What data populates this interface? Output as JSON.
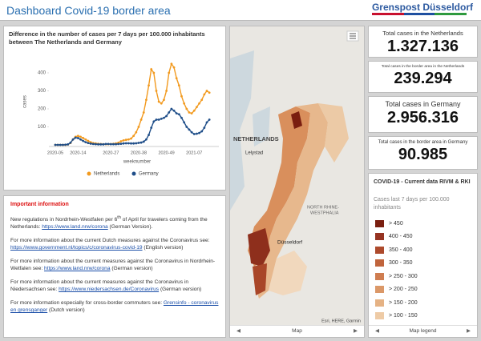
{
  "header": {
    "title": "Dashboard Covid-19 border area",
    "logo": "Grenspost Düsseldorf"
  },
  "chart_data": {
    "type": "line",
    "title": "Difference in the number of cases per 7 days per 100.000 inhabitants between The Netherlands and Germany",
    "x_label": "weeknumber",
    "y_label": "cases",
    "categories": [
      "2020-05",
      null,
      null,
      null,
      null,
      null,
      null,
      null,
      null,
      "2020-14",
      null,
      null,
      null,
      null,
      null,
      null,
      null,
      null,
      null,
      null,
      null,
      null,
      "2020-27",
      null,
      null,
      null,
      null,
      null,
      null,
      null,
      null,
      null,
      null,
      "2020-38",
      null,
      null,
      null,
      null,
      null,
      null,
      null,
      null,
      null,
      null,
      "2020-49",
      null,
      null,
      null,
      null,
      null,
      null,
      null,
      null,
      null,
      null,
      "2021-07",
      null,
      null,
      null,
      null,
      null,
      null
    ],
    "series": [
      {
        "name": "Netherlands",
        "color": "#f29a1f",
        "values": [
          0,
          0,
          0,
          0,
          0,
          2,
          10,
          30,
          45,
          50,
          45,
          38,
          30,
          22,
          15,
          10,
          8,
          6,
          5,
          4,
          4,
          4,
          5,
          6,
          8,
          12,
          20,
          25,
          28,
          30,
          35,
          50,
          70,
          100,
          140,
          180,
          250,
          330,
          420,
          400,
          300,
          240,
          230,
          250,
          300,
          400,
          450,
          430,
          370,
          330,
          270,
          230,
          200,
          180,
          175,
          190,
          210,
          230,
          250,
          280,
          300,
          290
        ]
      },
      {
        "name": "Germany",
        "color": "#1f4e89",
        "values": [
          0,
          0,
          0,
          0,
          1,
          3,
          12,
          30,
          40,
          38,
          30,
          22,
          15,
          10,
          7,
          5,
          4,
          3,
          3,
          3,
          5,
          5,
          4,
          4,
          4,
          5,
          6,
          8,
          9,
          9,
          8,
          8,
          9,
          11,
          13,
          18,
          30,
          55,
          95,
          130,
          140,
          140,
          145,
          150,
          160,
          180,
          200,
          190,
          175,
          170,
          150,
          125,
          100,
          85,
          70,
          60,
          62,
          66,
          75,
          95,
          125,
          140
        ]
      }
    ],
    "ylim": [
      0,
      480
    ],
    "yticks": [
      100,
      200,
      300,
      400
    ],
    "grid": false,
    "legend": "bottom"
  },
  "info": {
    "heading": "Important information",
    "paragraphs": [
      {
        "text": "New regulations in Nordrhein-Westfalen per 6",
        "sup": "th",
        "text2": " of April for travelers coming from the Netherlands: ",
        "link": "https://www.land.nrw/corona",
        "after": " (German Version)."
      },
      {
        "text": "For more information about the current Dutch measures against the Coronavirus see: ",
        "link": "https://www.government.nl/topics/c/coronavirus-covid-19",
        "after": " (English version)"
      },
      {
        "text": "For more information about the current measures against the Coronavirus in Nordrhein-Wetfalen see: ",
        "link": "https://www.land.nrw/corona",
        "after": " (German version)"
      },
      {
        "text": "For more information about the current measures against the Coronavirus in Niedersachsen see: ",
        "link": "https://www.niedersachsen.de/Coronavirus",
        "after": " (German version)"
      },
      {
        "text": "For more information especially for cross-border commuters see: ",
        "link": "Grensinfo - coronavirus en grensganger",
        "after": " (Dutch version)"
      }
    ]
  },
  "map": {
    "labels": [
      "NETHERLANDS",
      "Lelystad",
      "NORTH RHINE-",
      "WESTPHALIA",
      "Düsseldorf"
    ],
    "attribution": "Esri, HERE, Garmin",
    "footer": "Map"
  },
  "cards": [
    {
      "title": "Total cases in the Netherlands",
      "value": "1.327.136"
    },
    {
      "title": "Total cases in the border area in the Netherlands",
      "value": "239.294"
    },
    {
      "title": "Total cases in Germany",
      "value": "2.956.316"
    },
    {
      "title": "Total cases in the border area in Germany",
      "value": "90.985"
    }
  ],
  "map_legend": {
    "title": "COVID-19 - Current data RIVM & RKI",
    "subtitle": "Cases last 7 days per 100.000 inhabitants",
    "items": [
      {
        "label": "> 450",
        "color": "#7a1e10"
      },
      {
        "label": "400 - 450",
        "color": "#963322"
      },
      {
        "label": "350 - 400",
        "color": "#ad4a2c"
      },
      {
        "label": "300 - 350",
        "color": "#c0643c"
      },
      {
        "label": "> 250 - 300",
        "color": "#cf7d50"
      },
      {
        "label": "> 200 - 250",
        "color": "#db9868"
      },
      {
        "label": "> 150 - 200",
        "color": "#e5b284"
      },
      {
        "label": "> 100 - 150",
        "color": "#eecba6"
      }
    ],
    "footer": "Map legend"
  }
}
